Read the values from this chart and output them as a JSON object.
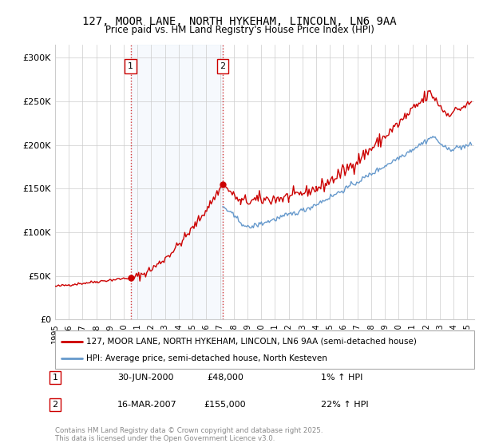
{
  "title": "127, MOOR LANE, NORTH HYKEHAM, LINCOLN, LN6 9AA",
  "subtitle": "Price paid vs. HM Land Registry's House Price Index (HPI)",
  "ylabel_ticks": [
    "£0",
    "£50K",
    "£100K",
    "£150K",
    "£200K",
    "£250K",
    "£300K"
  ],
  "ytick_vals": [
    0,
    50000,
    100000,
    150000,
    200000,
    250000,
    300000
  ],
  "ylim": [
    0,
    315000
  ],
  "xlim_start": 1995,
  "xlim_end": 2025.5,
  "red_color": "#cc0000",
  "blue_color": "#6699cc",
  "ann1_x": 2000.5,
  "ann1_y": 48000,
  "ann2_x": 2007.2,
  "ann2_y": 155000,
  "legend_line1": "127, MOOR LANE, NORTH HYKEHAM, LINCOLN, LN6 9AA (semi-detached house)",
  "legend_line2": "HPI: Average price, semi-detached house, North Kesteven",
  "footer": "Contains HM Land Registry data © Crown copyright and database right 2025.\nThis data is licensed under the Open Government Licence v3.0.",
  "table_entries": [
    {
      "num": "1",
      "date": "30-JUN-2000",
      "amount": "£48,000",
      "change": "1% ↑ HPI"
    },
    {
      "num": "2",
      "date": "16-MAR-2007",
      "amount": "£155,000",
      "change": "22% ↑ HPI"
    }
  ],
  "background_color": "#ffffff"
}
